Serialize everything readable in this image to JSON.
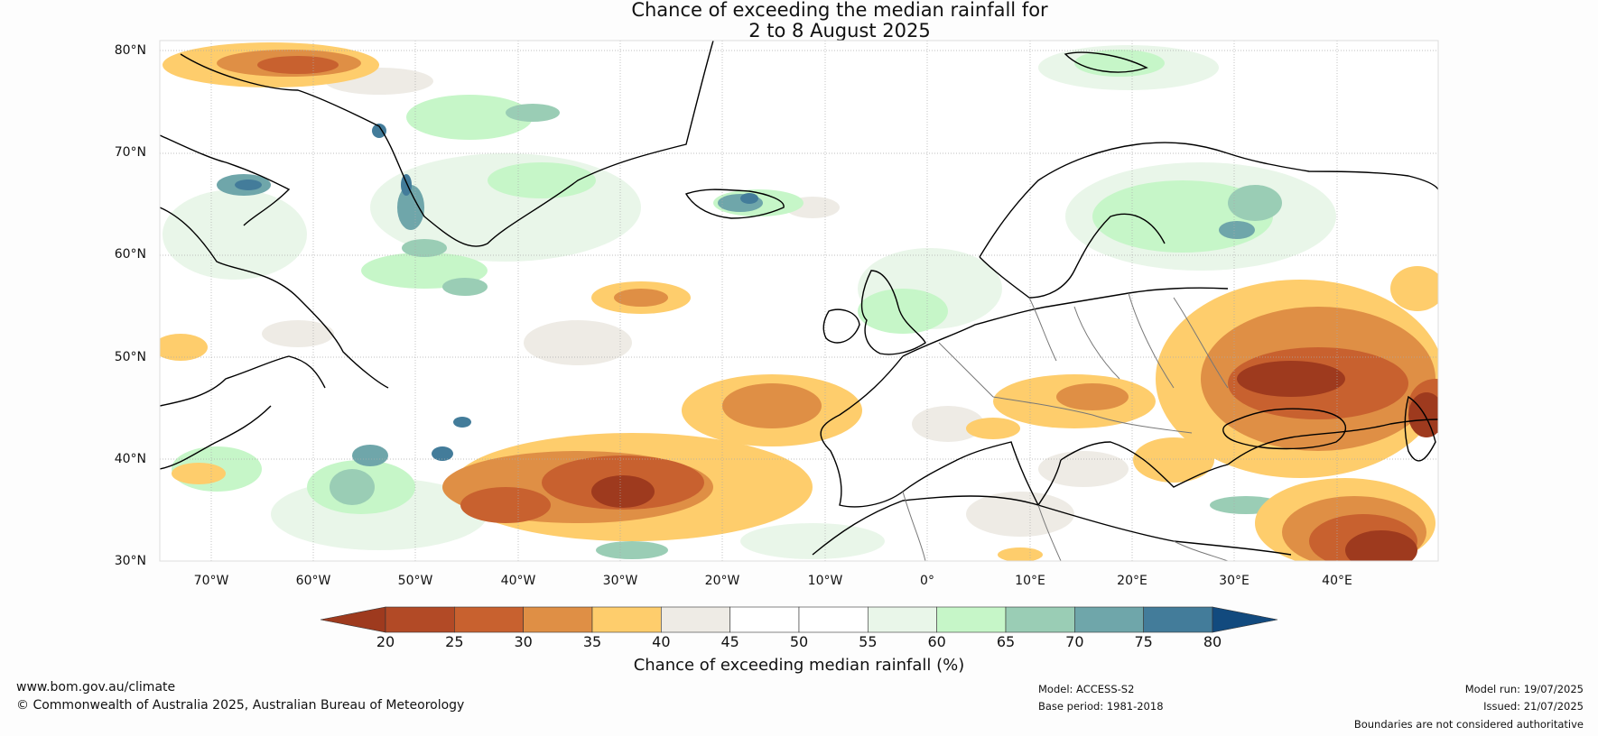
{
  "title": {
    "line1": "Chance of exceeding the median rainfall for",
    "line2": "2 to 8 August 2025"
  },
  "map": {
    "lat_labels": [
      "80°N",
      "70°N",
      "60°N",
      "50°N",
      "40°N",
      "30°N"
    ],
    "lon_labels": [
      "70°W",
      "60°W",
      "50°W",
      "40°W",
      "30°W",
      "20°W",
      "10°W",
      "0°",
      "10°E",
      "20°E",
      "30°E",
      "40°E"
    ],
    "extent": {
      "lon_min": -75,
      "lon_max": 50,
      "lat_min": 30,
      "lat_max": 81
    },
    "land_border_color": "#000000",
    "country_border_color": "#777777"
  },
  "colorbar": {
    "label": "Chance of exceeding median rainfall (%)",
    "ticks": [
      "20",
      "25",
      "30",
      "35",
      "40",
      "45",
      "50",
      "55",
      "60",
      "65",
      "70",
      "75",
      "80"
    ],
    "colors": [
      "#9e3a1e",
      "#b24a26",
      "#c8612f",
      "#df8f45",
      "#fecd6c",
      "#eeebe5",
      "#ffffff",
      "#ffffff",
      "#e9f6e9",
      "#c6f6c8",
      "#9acdb5",
      "#6fa6aa",
      "#437c9a",
      "#124a7e"
    ]
  },
  "footer": {
    "url": "www.bom.gov.au/climate",
    "copyright": "© Commonwealth of Australia 2025, Australian Bureau of Meteorology",
    "model": "Model: ACCESS-S2",
    "base_period": "Base period: 1981-2018",
    "model_run": "Model run: 19/07/2025",
    "issued": "Issued: 21/07/2025",
    "disclaimer": "Boundaries are not considered authoritative"
  }
}
